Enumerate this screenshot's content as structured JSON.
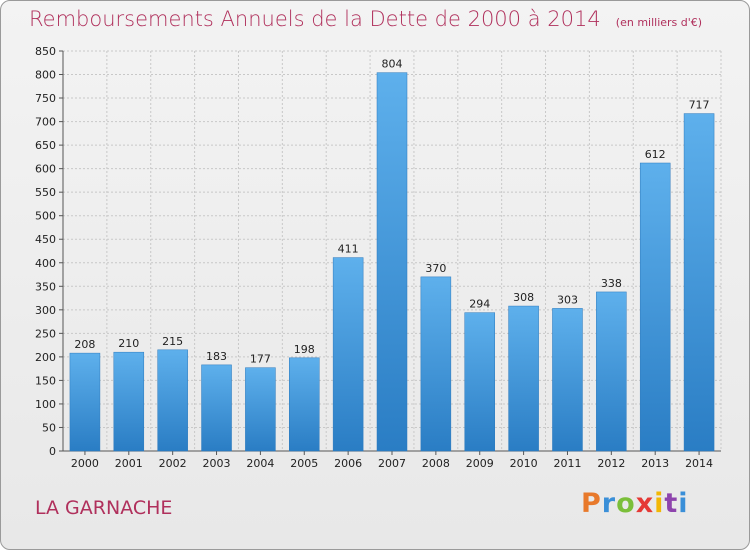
{
  "header": {
    "title": "Remboursements Annuels de la Dette de 2000 à 2014",
    "unit": "(en milliers d'€)"
  },
  "footer": {
    "place": "LA GARNACHE",
    "logo": {
      "letters": [
        "P",
        "r",
        "o",
        "x",
        "i",
        "t",
        "i"
      ],
      "colors": [
        "#e8792b",
        "#3a8fd8",
        "#7bbf3a",
        "#e53935",
        "#f2b705",
        "#8e44ad",
        "#3a8fd8"
      ]
    }
  },
  "chart_data": {
    "type": "bar",
    "title": "Remboursements Annuels de la Dette de 2000 à 2014",
    "subtitle": "(en milliers d'€)",
    "categories": [
      "2000",
      "2001",
      "2002",
      "2003",
      "2004",
      "2005",
      "2006",
      "2007",
      "2008",
      "2009",
      "2010",
      "2011",
      "2012",
      "2013",
      "2014"
    ],
    "values": [
      208,
      210,
      215,
      183,
      177,
      198,
      411,
      804,
      370,
      294,
      308,
      303,
      338,
      612,
      717
    ],
    "ylim": [
      0,
      850
    ],
    "yticks": [
      0,
      50,
      100,
      150,
      200,
      250,
      300,
      350,
      400,
      450,
      500,
      550,
      600,
      650,
      700,
      750,
      800,
      850
    ],
    "grid": true,
    "bar_color": "#3b94dc"
  }
}
